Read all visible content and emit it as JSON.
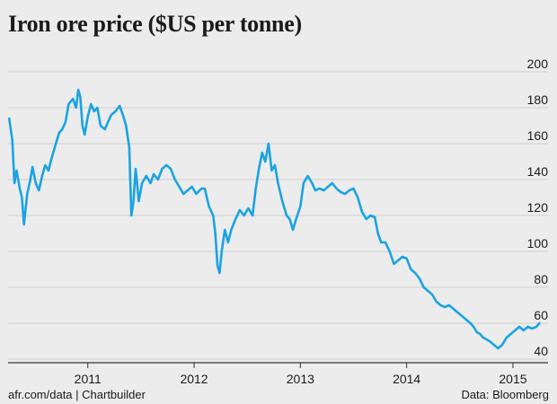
{
  "title": "Iron ore price ($US per tonne)",
  "footer": {
    "source_left": "afr.com/data | Chartbuilder",
    "source_right": "Data: Bloomberg"
  },
  "colors": {
    "line": "#1aa3e0",
    "grid": "#cfcfcf",
    "axis": "#333333",
    "background": "#ececec"
  },
  "chart_data": {
    "type": "line",
    "title": "Iron ore price ($US per tonne)",
    "xlabel": "",
    "ylabel": "",
    "xlim": [
      2010.25,
      2015.33
    ],
    "ylim": [
      40,
      200
    ],
    "yticks": [
      40,
      60,
      80,
      100,
      120,
      140,
      160,
      180,
      200
    ],
    "xticks": [
      {
        "label": "2011",
        "value": 2011
      },
      {
        "label": "2012",
        "value": 2012
      },
      {
        "label": "2013",
        "value": 2013
      },
      {
        "label": "2014",
        "value": 2014
      },
      {
        "label": "2015",
        "value": 2015
      }
    ],
    "grid": true,
    "y_axis_side": "right",
    "series": [
      {
        "values": [
          [
            2010.26,
            174
          ],
          [
            2010.29,
            162
          ],
          [
            2010.31,
            138
          ],
          [
            2010.33,
            145
          ],
          [
            2010.36,
            135
          ],
          [
            2010.38,
            130
          ],
          [
            2010.4,
            115
          ],
          [
            2010.43,
            132
          ],
          [
            2010.46,
            140
          ],
          [
            2010.48,
            147
          ],
          [
            2010.51,
            138
          ],
          [
            2010.54,
            134
          ],
          [
            2010.57,
            142
          ],
          [
            2010.6,
            148
          ],
          [
            2010.63,
            145
          ],
          [
            2010.66,
            152
          ],
          [
            2010.7,
            160
          ],
          [
            2010.73,
            166
          ],
          [
            2010.76,
            168
          ],
          [
            2010.79,
            172
          ],
          [
            2010.82,
            182
          ],
          [
            2010.86,
            185
          ],
          [
            2010.89,
            180
          ],
          [
            2010.91,
            190
          ],
          [
            2010.93,
            186
          ],
          [
            2010.95,
            170
          ],
          [
            2010.97,
            165
          ],
          [
            2011.0,
            175
          ],
          [
            2011.03,
            182
          ],
          [
            2011.06,
            178
          ],
          [
            2011.09,
            180
          ],
          [
            2011.12,
            170
          ],
          [
            2011.16,
            168
          ],
          [
            2011.19,
            172
          ],
          [
            2011.22,
            176
          ],
          [
            2011.26,
            178
          ],
          [
            2011.3,
            181
          ],
          [
            2011.33,
            176
          ],
          [
            2011.36,
            170
          ],
          [
            2011.39,
            158
          ],
          [
            2011.41,
            120
          ],
          [
            2011.43,
            128
          ],
          [
            2011.45,
            146
          ],
          [
            2011.48,
            128
          ],
          [
            2011.51,
            138
          ],
          [
            2011.55,
            142
          ],
          [
            2011.59,
            138
          ],
          [
            2011.62,
            143
          ],
          [
            2011.66,
            140
          ],
          [
            2011.7,
            146
          ],
          [
            2011.74,
            148
          ],
          [
            2011.78,
            146
          ],
          [
            2011.82,
            140
          ],
          [
            2011.86,
            136
          ],
          [
            2011.9,
            132
          ],
          [
            2011.94,
            134
          ],
          [
            2011.98,
            136
          ],
          [
            2012.02,
            132
          ],
          [
            2012.07,
            135
          ],
          [
            2012.1,
            135
          ],
          [
            2012.14,
            125
          ],
          [
            2012.18,
            120
          ],
          [
            2012.2,
            110
          ],
          [
            2012.22,
            92
          ],
          [
            2012.24,
            88
          ],
          [
            2012.26,
            100
          ],
          [
            2012.29,
            112
          ],
          [
            2012.32,
            105
          ],
          [
            2012.35,
            112
          ],
          [
            2012.39,
            118
          ],
          [
            2012.43,
            123
          ],
          [
            2012.47,
            120
          ],
          [
            2012.51,
            124
          ],
          [
            2012.55,
            120
          ],
          [
            2012.58,
            135
          ],
          [
            2012.61,
            146
          ],
          [
            2012.64,
            155
          ],
          [
            2012.67,
            150
          ],
          [
            2012.7,
            160
          ],
          [
            2012.73,
            145
          ],
          [
            2012.76,
            148
          ],
          [
            2012.79,
            138
          ],
          [
            2012.83,
            128
          ],
          [
            2012.87,
            120
          ],
          [
            2012.9,
            118
          ],
          [
            2012.93,
            112
          ],
          [
            2012.96,
            118
          ],
          [
            2013.0,
            125
          ],
          [
            2013.03,
            138
          ],
          [
            2013.07,
            142
          ],
          [
            2013.11,
            138
          ],
          [
            2013.14,
            134
          ],
          [
            2013.18,
            135
          ],
          [
            2013.22,
            134
          ],
          [
            2013.26,
            136
          ],
          [
            2013.3,
            138
          ],
          [
            2013.34,
            135
          ],
          [
            2013.38,
            133
          ],
          [
            2013.42,
            132
          ],
          [
            2013.46,
            134
          ],
          [
            2013.5,
            135
          ],
          [
            2013.54,
            130
          ],
          [
            2013.58,
            122
          ],
          [
            2013.62,
            118
          ],
          [
            2013.66,
            120
          ],
          [
            2013.7,
            119
          ],
          [
            2013.73,
            110
          ],
          [
            2013.76,
            105
          ],
          [
            2013.8,
            105
          ],
          [
            2013.84,
            100
          ],
          [
            2013.88,
            93
          ],
          [
            2013.92,
            95
          ],
          [
            2013.96,
            97
          ],
          [
            2014.0,
            96
          ],
          [
            2014.04,
            90
          ],
          [
            2014.08,
            88
          ],
          [
            2014.12,
            85
          ],
          [
            2014.16,
            80
          ],
          [
            2014.2,
            78
          ],
          [
            2014.24,
            76
          ],
          [
            2014.28,
            72
          ],
          [
            2014.32,
            70
          ],
          [
            2014.36,
            69
          ],
          [
            2014.4,
            70
          ],
          [
            2014.44,
            68
          ],
          [
            2014.48,
            66
          ],
          [
            2014.52,
            64
          ],
          [
            2014.56,
            62
          ],
          [
            2014.6,
            60
          ],
          [
            2014.63,
            58
          ],
          [
            2014.66,
            55
          ],
          [
            2014.69,
            54
          ],
          [
            2014.72,
            52
          ],
          [
            2014.75,
            51
          ],
          [
            2014.78,
            50
          ],
          [
            2014.82,
            48
          ],
          [
            2014.86,
            46
          ],
          [
            2014.9,
            48
          ],
          [
            2014.94,
            52
          ],
          [
            2014.98,
            54
          ],
          [
            2015.02,
            56
          ],
          [
            2015.06,
            58
          ],
          [
            2015.1,
            56
          ],
          [
            2015.14,
            58
          ],
          [
            2015.18,
            57
          ],
          [
            2015.22,
            58
          ],
          [
            2015.25,
            60
          ]
        ]
      }
    ]
  }
}
